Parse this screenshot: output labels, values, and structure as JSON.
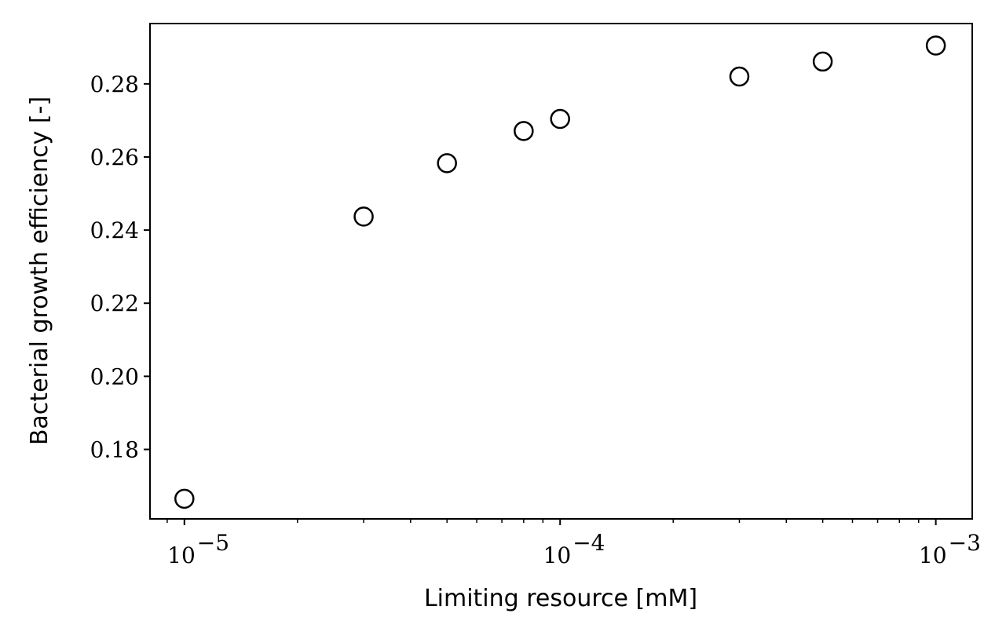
{
  "chart_data": {
    "type": "scatter",
    "title": "",
    "xlabel": "Limiting resource [mM]",
    "ylabel": "Bacterial growth efficiency [-]",
    "xscale": "log",
    "xlim": [
      8.1e-06,
      0.00125
    ],
    "ylim": [
      0.161,
      0.2965
    ],
    "grid": false,
    "marker": "open-circle",
    "marker_color": "#000000",
    "x_ticks": [
      {
        "value": 1e-05,
        "base": "10",
        "exp": "−5"
      },
      {
        "value": 0.0001,
        "base": "10",
        "exp": "−4"
      },
      {
        "value": 0.001,
        "base": "10",
        "exp": "−3"
      }
    ],
    "y_ticks": [
      {
        "value": 0.18,
        "label": "0.18"
      },
      {
        "value": 0.2,
        "label": "0.20"
      },
      {
        "value": 0.22,
        "label": "0.22"
      },
      {
        "value": 0.24,
        "label": "0.24"
      },
      {
        "value": 0.26,
        "label": "0.26"
      },
      {
        "value": 0.28,
        "label": "0.28"
      }
    ],
    "x": [
      1e-05,
      3e-05,
      5e-05,
      8e-05,
      0.0001,
      0.0003,
      0.0005,
      0.001
    ],
    "y": [
      0.1665,
      0.2437,
      0.2583,
      0.2671,
      0.2704,
      0.282,
      0.2861,
      0.2905
    ]
  }
}
